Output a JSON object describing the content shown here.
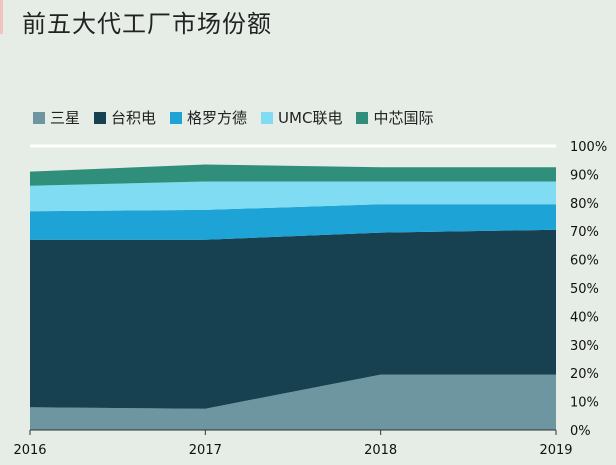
{
  "title": "前五大代工厂市场份额",
  "colors": {
    "sanxing": "#6e96a0",
    "taijidian": "#174050",
    "gelofangde": "#1ea3d6",
    "umc": "#7fdcf3",
    "zhongxin": "#2f8f7b"
  },
  "chart_data": {
    "type": "area",
    "stacked": true,
    "title": "前五大代工厂市场份额",
    "x": [
      "2016",
      "2017",
      "2018",
      "2019"
    ],
    "ylim": [
      0,
      100
    ],
    "yticks": [
      "0%",
      "10%",
      "20%",
      "30%",
      "40%",
      "50%",
      "60%",
      "70%",
      "80%",
      "90%",
      "100%"
    ],
    "legend_position": "top-left",
    "series": [
      {
        "name": "三星",
        "values": [
          8,
          7.5,
          19.5,
          19.5
        ]
      },
      {
        "name": "台积电",
        "values": [
          59,
          59.5,
          50,
          51
        ]
      },
      {
        "name": "格罗方德",
        "values": [
          10,
          10.5,
          10,
          9
        ]
      },
      {
        "name": "UMC联电",
        "values": [
          9,
          10,
          8,
          8
        ]
      },
      {
        "name": "中芯国际",
        "values": [
          5,
          6,
          5,
          5
        ]
      }
    ]
  }
}
